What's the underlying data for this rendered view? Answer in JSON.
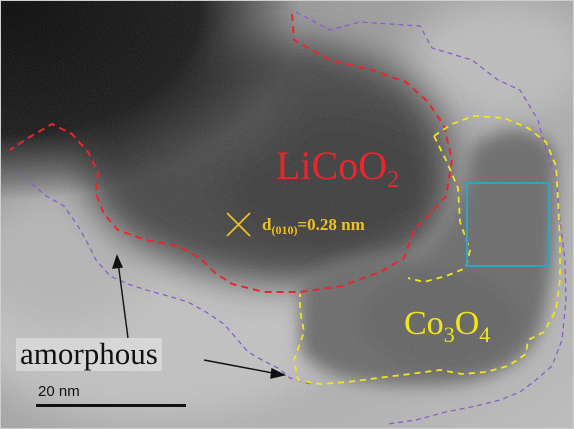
{
  "figure": {
    "labels": {
      "licoo2": {
        "main": "LiCoO",
        "sub": "2"
      },
      "co3o4": {
        "a": "Co",
        "b": "3",
        "c": "O",
        "d": "4"
      },
      "dspacing": {
        "d": "d",
        "plane": "(010)",
        "value": "=0.28 nm"
      },
      "amorphous": "amorphous",
      "scale_bar": "20 nm"
    },
    "colors": {
      "licoo2_boundary": "#e8262e",
      "co3o4_boundary": "#f2e51a",
      "amorphous_boundary": "#8a5ec9",
      "selection_box": "#2aa6c8",
      "dspacing_label": "#f0c020"
    }
  }
}
